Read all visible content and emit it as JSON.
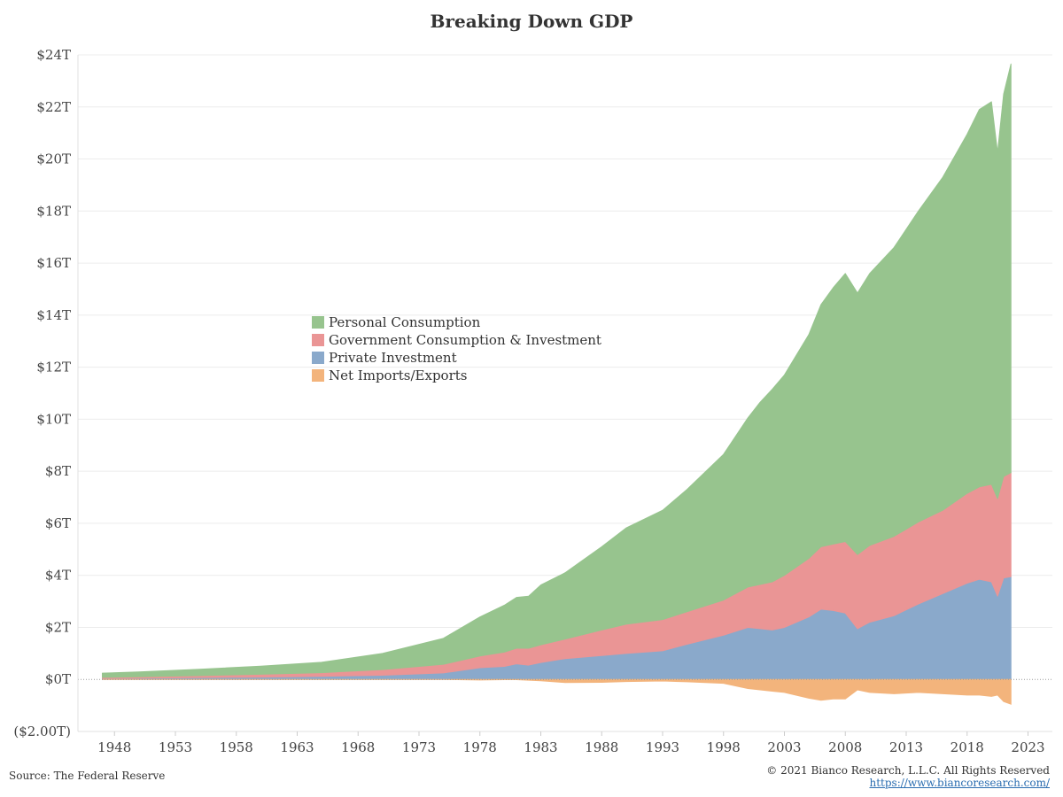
{
  "chart_data": {
    "type": "area",
    "title": "Breaking Down GDP",
    "xlabel": "",
    "ylabel": "",
    "xlim": [
      1945,
      2025
    ],
    "ylim": [
      -2.0,
      24.0
    ],
    "x_ticks": [
      1948,
      1953,
      1958,
      1963,
      1968,
      1973,
      1978,
      1983,
      1988,
      1993,
      1998,
      2003,
      2008,
      2013,
      2018,
      2023
    ],
    "y_ticks": [
      -2,
      0,
      2,
      4,
      6,
      8,
      10,
      12,
      14,
      16,
      18,
      20,
      22,
      24
    ],
    "y_tick_labels": [
      "($2.00T)",
      "$0T",
      "$2T",
      "$4T",
      "$6T",
      "$8T",
      "$10T",
      "$12T",
      "$14T",
      "$16T",
      "$18T",
      "$20T",
      "$22T",
      "$24T"
    ],
    "grid": true,
    "legend_position": "center-left",
    "legend": [
      "Personal Consumption",
      "Government Consumption & Investment",
      "Private Investment",
      "Net Imports/Exports"
    ],
    "x": [
      1947,
      1950,
      1955,
      1960,
      1965,
      1970,
      1975,
      1978,
      1980,
      1981,
      1982,
      1983,
      1985,
      1988,
      1990,
      1993,
      1995,
      1998,
      2000,
      2001,
      2002,
      2003,
      2005,
      2006,
      2007,
      2008,
      2009,
      2010,
      2012,
      2014,
      2016,
      2018,
      2019,
      2020,
      2020.5,
      2021,
      2021.6
    ],
    "series": [
      {
        "name": "Private Investment",
        "color": "#8aa9cb",
        "values": [
          0.04,
          0.05,
          0.07,
          0.09,
          0.12,
          0.16,
          0.25,
          0.45,
          0.5,
          0.6,
          0.55,
          0.65,
          0.8,
          0.92,
          1.0,
          1.1,
          1.35,
          1.7,
          2.0,
          1.95,
          1.9,
          2.0,
          2.4,
          2.7,
          2.65,
          2.55,
          1.95,
          2.2,
          2.45,
          2.9,
          3.3,
          3.7,
          3.85,
          3.75,
          3.2,
          3.9,
          3.95
        ]
      },
      {
        "name": "Government Consumption & Investment",
        "color": "#ea9595",
        "values": [
          0.04,
          0.05,
          0.08,
          0.11,
          0.14,
          0.22,
          0.33,
          0.45,
          0.55,
          0.6,
          0.65,
          0.68,
          0.75,
          0.98,
          1.12,
          1.2,
          1.25,
          1.35,
          1.55,
          1.7,
          1.85,
          2.0,
          2.25,
          2.4,
          2.55,
          2.75,
          2.85,
          2.95,
          3.05,
          3.15,
          3.2,
          3.45,
          3.55,
          3.75,
          3.75,
          3.9,
          4.0
        ]
      },
      {
        "name": "Personal Consumption",
        "color": "#97c48e",
        "values": [
          0.16,
          0.19,
          0.24,
          0.31,
          0.4,
          0.62,
          1.0,
          1.5,
          1.8,
          1.95,
          2.0,
          2.3,
          2.55,
          3.2,
          3.7,
          4.2,
          4.7,
          5.6,
          6.5,
          7.0,
          7.4,
          7.7,
          8.6,
          9.3,
          9.85,
          10.3,
          10.05,
          10.45,
          11.1,
          11.95,
          12.8,
          13.8,
          14.5,
          14.7,
          13.3,
          14.7,
          15.7
        ]
      },
      {
        "name": "Net Imports/Exports",
        "color": "#f3b47c",
        "values": [
          0.01,
          0.0,
          0.0,
          0.0,
          0.0,
          0.0,
          0.01,
          -0.02,
          -0.01,
          -0.01,
          -0.03,
          -0.05,
          -0.12,
          -0.11,
          -0.08,
          -0.06,
          -0.09,
          -0.15,
          -0.35,
          -0.4,
          -0.45,
          -0.5,
          -0.72,
          -0.8,
          -0.75,
          -0.75,
          -0.4,
          -0.5,
          -0.55,
          -0.5,
          -0.55,
          -0.6,
          -0.6,
          -0.65,
          -0.6,
          -0.85,
          -0.95
        ]
      }
    ]
  },
  "source_text": "Source: The Federal Reserve",
  "copyright_text": "© 2021 Bianco Research, L.L.C. All Rights Reserved",
  "website_text": "https://www.biancoresearch.com/"
}
